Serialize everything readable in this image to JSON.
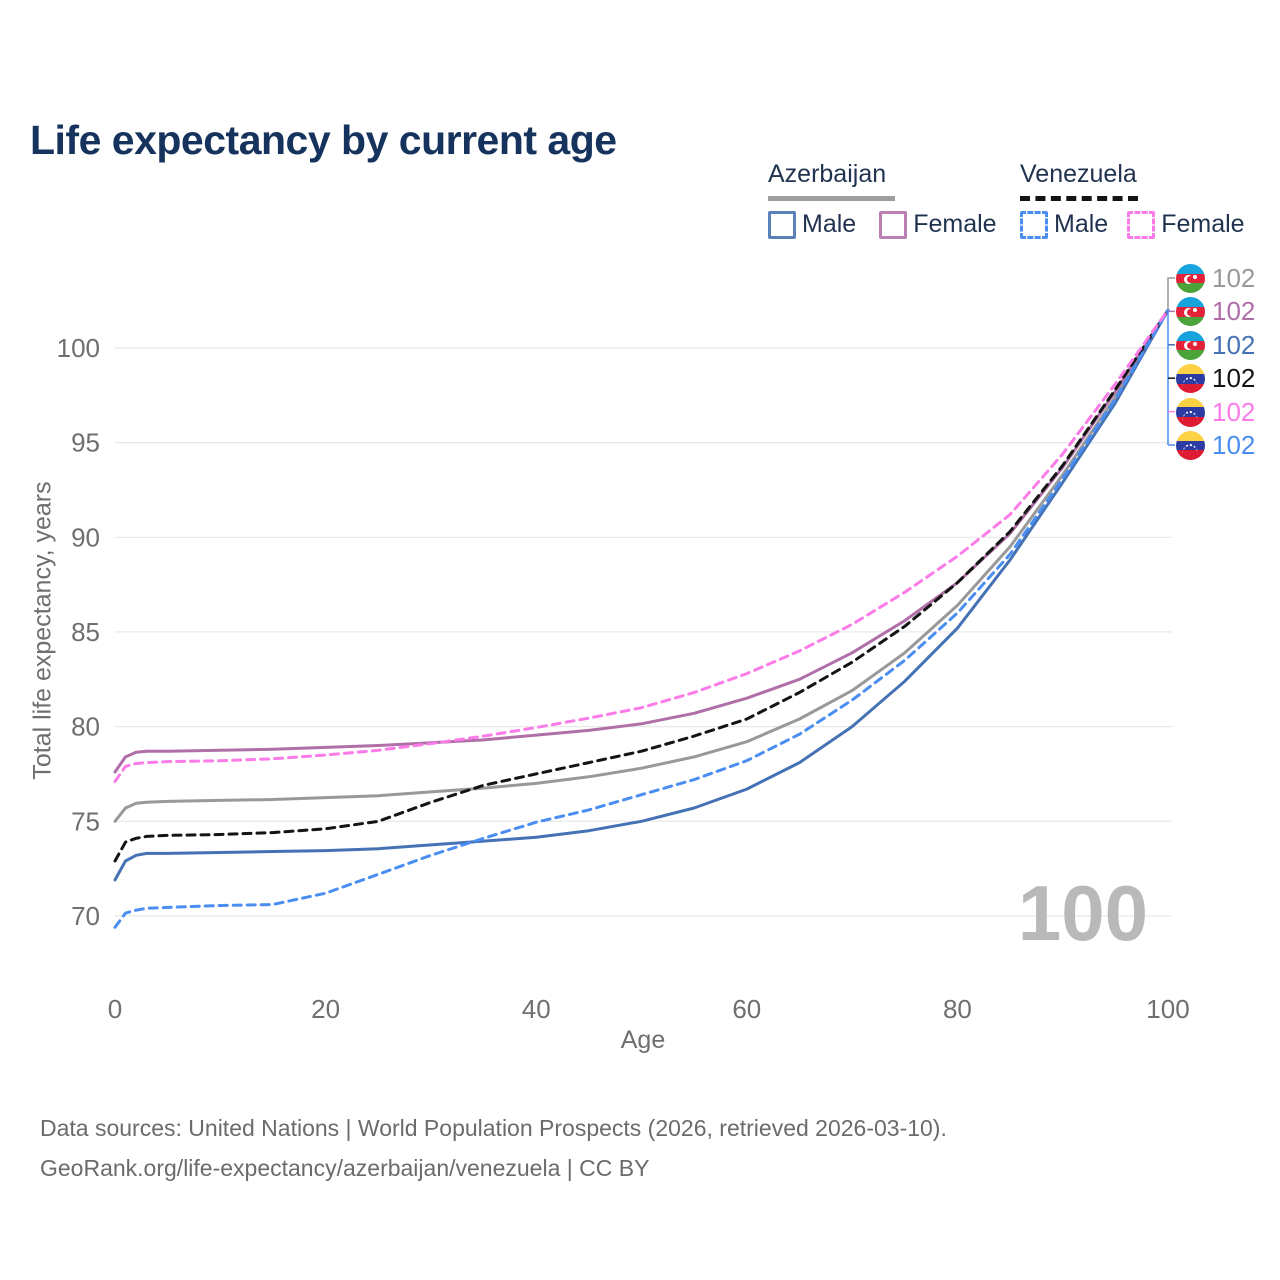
{
  "title": "Life expectancy by current age",
  "watermark": "100",
  "legend": {
    "groups": [
      {
        "label": "Azerbaijan",
        "line_style": "solid",
        "underline_color": "#9e9e9e",
        "items": [
          {
            "label": "Male",
            "color": "#4472b4"
          },
          {
            "label": "Female",
            "color": "#b06fa8"
          }
        ]
      },
      {
        "label": "Venezuela",
        "line_style": "dashed",
        "underline_color": "#141414",
        "items": [
          {
            "label": "Male",
            "color": "#4a8ef2"
          },
          {
            "label": "Female",
            "color": "#fb7ce8"
          }
        ]
      }
    ]
  },
  "right_labels": [
    {
      "flag": "azerbaijan",
      "value": "102",
      "color": "#999999"
    },
    {
      "flag": "azerbaijan",
      "value": "102",
      "color": "#b06fa8"
    },
    {
      "flag": "azerbaijan",
      "value": "102",
      "color": "#4472b4"
    },
    {
      "flag": "venezuela",
      "value": "102",
      "color": "#141414"
    },
    {
      "flag": "venezuela",
      "value": "102",
      "color": "#fb7ce8"
    },
    {
      "flag": "venezuela",
      "value": "102",
      "color": "#4a8ef2"
    }
  ],
  "footer": {
    "line1": "Data sources: United Nations | World Population Prospects (2026, retrieved 2026-03-10).",
    "line2": "GeoRank.org/life-expectancy/azerbaijan/venezuela | CC BY"
  },
  "chart_data": {
    "type": "line",
    "title": "Life expectancy by current age",
    "xlabel": "Age",
    "ylabel": "Total life expectancy, years",
    "xlim": [
      0,
      100
    ],
    "ylim": [
      69,
      103
    ],
    "x_ticks": [
      0,
      20,
      40,
      60,
      80,
      100
    ],
    "y_ticks": [
      70,
      75,
      80,
      85,
      90,
      95,
      100
    ],
    "grid": "horizontal",
    "legend_position": "top-right",
    "x": [
      0,
      1,
      2,
      3,
      5,
      10,
      15,
      20,
      25,
      30,
      35,
      40,
      45,
      50,
      55,
      60,
      65,
      70,
      75,
      80,
      85,
      90,
      95,
      100
    ],
    "series": [
      {
        "name": "Azerbaijan Both sexes",
        "country": "Azerbaijan",
        "sex": "all",
        "color": "#999999",
        "dash": false,
        "values": [
          75.0,
          75.7,
          75.95,
          76.0,
          76.05,
          76.1,
          76.15,
          76.25,
          76.35,
          76.55,
          76.75,
          77.0,
          77.35,
          77.8,
          78.4,
          79.2,
          80.4,
          81.9,
          83.9,
          86.4,
          89.5,
          93.3,
          97.4,
          102
        ]
      },
      {
        "name": "Azerbaijan Female",
        "country": "Azerbaijan",
        "sex": "female",
        "color": "#b06fa8",
        "dash": false,
        "values": [
          77.6,
          78.4,
          78.65,
          78.7,
          78.7,
          78.75,
          78.8,
          78.9,
          79.0,
          79.15,
          79.3,
          79.55,
          79.8,
          80.15,
          80.7,
          81.5,
          82.5,
          83.9,
          85.6,
          87.6,
          90.2,
          93.7,
          97.7,
          102
        ]
      },
      {
        "name": "Azerbaijan Male",
        "country": "Azerbaijan",
        "sex": "male",
        "color": "#4472b4",
        "dash": false,
        "values": [
          71.9,
          72.9,
          73.2,
          73.3,
          73.3,
          73.35,
          73.4,
          73.45,
          73.55,
          73.75,
          73.95,
          74.15,
          74.5,
          75.0,
          75.7,
          76.7,
          78.1,
          80.0,
          82.4,
          85.2,
          88.8,
          92.9,
          97.1,
          102
        ]
      },
      {
        "name": "Venezuela Both sexes",
        "country": "Venezuela",
        "sex": "all",
        "color": "#141414",
        "dash": true,
        "values": [
          72.9,
          73.9,
          74.1,
          74.2,
          74.25,
          74.3,
          74.4,
          74.6,
          75.0,
          76.0,
          76.9,
          77.5,
          78.1,
          78.7,
          79.5,
          80.4,
          81.8,
          83.4,
          85.3,
          87.6,
          90.3,
          93.8,
          97.8,
          102
        ]
      },
      {
        "name": "Venezuela Male",
        "country": "Venezuela",
        "sex": "male",
        "color": "#4a8ef2",
        "dash": true,
        "values": [
          69.4,
          70.15,
          70.3,
          70.4,
          70.45,
          70.55,
          70.6,
          71.2,
          72.2,
          73.2,
          74.1,
          74.95,
          75.6,
          76.4,
          77.2,
          78.2,
          79.6,
          81.4,
          83.5,
          86.0,
          89.1,
          93.1,
          97.3,
          102
        ]
      },
      {
        "name": "Venezuela Female",
        "country": "Venezuela",
        "sex": "female",
        "color": "#fb7ce8",
        "dash": true,
        "values": [
          77.1,
          77.9,
          78.05,
          78.1,
          78.15,
          78.2,
          78.3,
          78.5,
          78.75,
          79.1,
          79.5,
          79.95,
          80.45,
          81.0,
          81.8,
          82.8,
          84.0,
          85.4,
          87.1,
          89.0,
          91.2,
          94.4,
          98.1,
          102
        ]
      }
    ]
  }
}
